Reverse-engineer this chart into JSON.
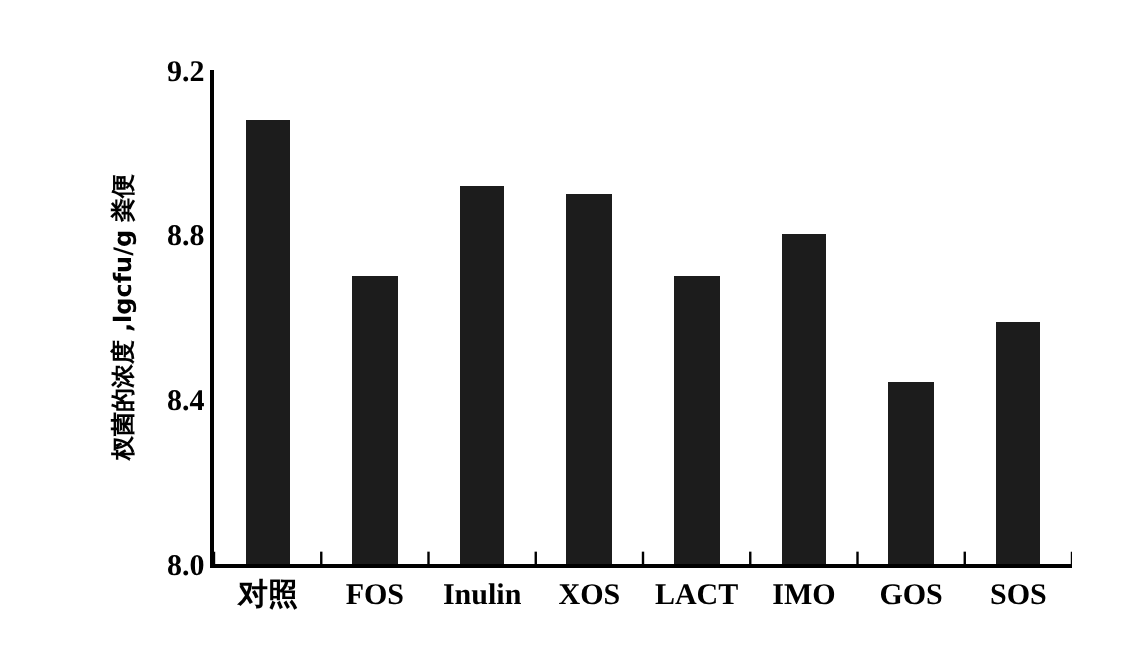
{
  "chart_data": {
    "type": "bar",
    "ylabel": "杈菌的浓度 ,lgcfu/g 粪便",
    "categories": [
      "对照",
      "FOS",
      "Inulin",
      "XOS",
      "LACT",
      "IMO",
      "GOS",
      "SOS"
    ],
    "values": [
      9.08,
      8.7,
      8.92,
      8.9,
      8.7,
      8.8,
      8.44,
      8.59
    ],
    "color": "#1c1c1c",
    "ylim": [
      8.0,
      9.2
    ],
    "yticks": [
      {
        "value": 8.0,
        "label": "8.0"
      },
      8.4,
      8.8,
      9.2
    ]
  }
}
